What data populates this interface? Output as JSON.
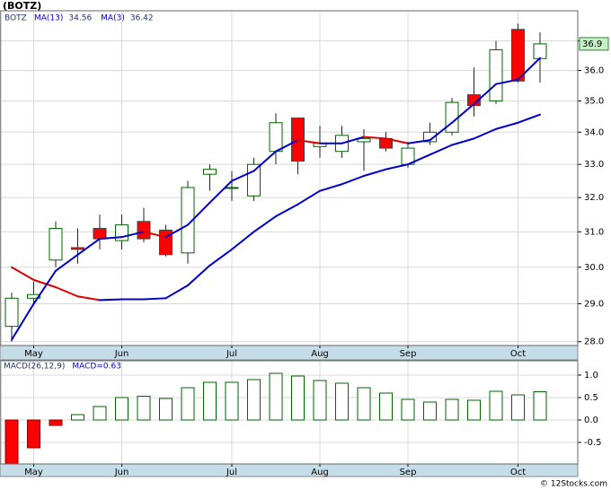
{
  "header": {
    "title": "(BOTZ)"
  },
  "footer": "© 12Stocks.com",
  "chart_data": [
    {
      "type": "candlestick",
      "name": "BOTZ",
      "log_scale": true,
      "grid": true,
      "categories": [
        null,
        "May",
        null,
        null,
        null,
        "Jun",
        null,
        null,
        null,
        null,
        "Jul",
        null,
        null,
        null,
        "Aug",
        null,
        null,
        null,
        "Sep",
        null,
        null,
        null,
        null,
        "Oct",
        null
      ],
      "open": [
        28.4,
        29.15,
        30.2,
        30.55,
        31.1,
        30.75,
        31.3,
        31.05,
        30.4,
        32.7,
        32.3,
        32.05,
        33.4,
        34.45,
        33.55,
        33.4,
        33.7,
        33.8,
        33.0,
        33.7,
        34.0,
        35.2,
        35.0,
        37.4,
        36.4
      ],
      "high": [
        29.3,
        29.6,
        31.3,
        31.1,
        31.5,
        31.5,
        31.7,
        31.2,
        32.5,
        33.0,
        32.8,
        33.2,
        34.6,
        34.45,
        34.2,
        34.2,
        34.1,
        34.0,
        33.7,
        34.3,
        35.1,
        36.1,
        37.0,
        37.6,
        37.3
      ],
      "low": [
        28.0,
        29.0,
        30.0,
        30.1,
        30.5,
        30.5,
        30.7,
        30.3,
        30.1,
        32.2,
        31.9,
        31.9,
        33.0,
        32.7,
        33.2,
        33.2,
        32.8,
        33.4,
        32.9,
        33.6,
        33.9,
        34.5,
        34.9,
        35.6,
        35.6
      ],
      "close": [
        29.15,
        29.25,
        31.1,
        30.5,
        30.8,
        31.2,
        30.8,
        30.35,
        32.3,
        32.85,
        32.3,
        33.0,
        34.3,
        33.1,
        33.65,
        33.9,
        33.8,
        33.5,
        33.5,
        34.0,
        34.95,
        34.85,
        36.7,
        35.65,
        36.9
      ],
      "up_color": "#006400",
      "down_color": "#ff0000",
      "ylim": [
        27.9,
        38.05
      ],
      "yticks": [
        {
          "value": 28,
          "label": "28.0"
        },
        {
          "value": 29,
          "label": "29.0"
        },
        {
          "value": 30,
          "label": "30.0"
        },
        {
          "value": 31,
          "label": "31.0"
        },
        {
          "value": 32,
          "label": "32.0"
        },
        {
          "value": 33,
          "label": "33.0"
        },
        {
          "value": 34,
          "label": "34.0"
        },
        {
          "value": 35,
          "label": "35.0"
        },
        {
          "value": 36,
          "label": "36.0"
        },
        {
          "value": 37,
          "label": "37.0"
        }
      ],
      "series": [
        {
          "name": "MA(13)",
          "color": "#0000cc",
          "down_color": "#dd0000",
          "values": [
            30.0,
            29.65,
            29.45,
            29.2,
            29.1,
            29.12,
            29.12,
            29.15,
            29.5,
            30.05,
            30.5,
            31.0,
            31.45,
            31.8,
            32.2,
            32.4,
            32.65,
            32.85,
            33.0,
            33.3,
            33.6,
            33.8,
            34.1,
            34.3,
            34.56
          ]
        },
        {
          "name": "MA(3)",
          "color": "#0000cc",
          "down_color": "#dd0000",
          "values": [
            28.05,
            29.0,
            29.9,
            30.35,
            30.8,
            30.85,
            31.0,
            30.85,
            31.2,
            31.85,
            32.5,
            32.8,
            33.4,
            33.75,
            33.65,
            33.65,
            33.85,
            33.8,
            33.65,
            33.75,
            34.3,
            34.9,
            35.55,
            35.7,
            36.42
          ]
        }
      ]
    },
    {
      "type": "histogram",
      "name": "MACD(26,12,9)",
      "current_label": "MACD=0.63",
      "grid": true,
      "categories": [
        null,
        "May",
        null,
        null,
        null,
        "Jun",
        null,
        null,
        null,
        null,
        "Jul",
        null,
        null,
        null,
        "Aug",
        null,
        null,
        null,
        "Sep",
        null,
        null,
        null,
        null,
        "Oct",
        null
      ],
      "values": [
        -0.98,
        -0.62,
        -0.12,
        0.12,
        0.3,
        0.5,
        0.53,
        0.48,
        0.72,
        0.84,
        0.84,
        0.9,
        1.04,
        0.98,
        0.88,
        0.82,
        0.72,
        0.6,
        0.46,
        0.4,
        0.46,
        0.44,
        0.64,
        0.56,
        0.63
      ],
      "up_color": "#006400",
      "down_color": "#ff0000",
      "ylim": [
        -0.98,
        1.32
      ],
      "yticks": [
        {
          "value": 1,
          "label": "1.0"
        },
        0.5,
        {
          "value": 0,
          "label": "0.0"
        },
        -0.5
      ]
    }
  ]
}
